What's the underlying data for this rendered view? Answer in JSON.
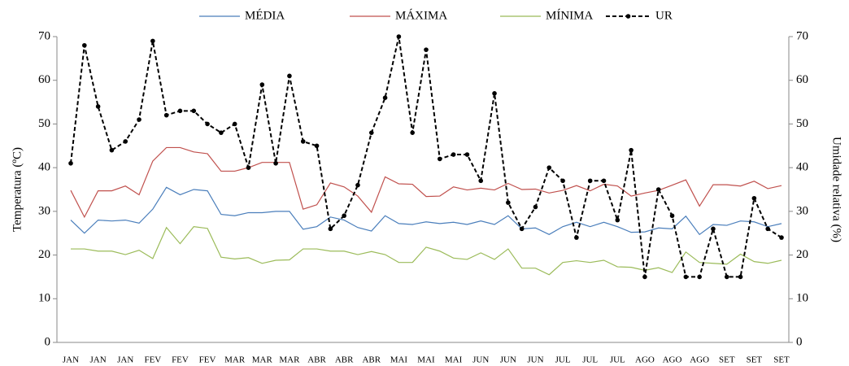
{
  "chart_data": {
    "type": "line",
    "ylabel": "Temperatura (ºC)",
    "y2label": "Umidade relativa (%)",
    "categories": [
      "JAN",
      null,
      "JAN",
      null,
      "JAN",
      null,
      "FEV",
      null,
      "FEV",
      null,
      "FEV",
      null,
      "MAR",
      null,
      "MAR",
      null,
      "MAR",
      null,
      "ABR",
      null,
      "ABR",
      null,
      "ABR",
      null,
      "MAI",
      null,
      "MAI",
      null,
      "MAI",
      null,
      "JUN",
      null,
      "JUN",
      null,
      "JUN",
      null,
      "JUL",
      null,
      "JUL",
      null,
      "JUL",
      null,
      "AGO",
      null,
      "AGO",
      null,
      "AGO",
      null,
      "SET",
      null,
      "SET",
      null,
      "SET"
    ],
    "series": [
      {
        "name": "MÉDIA",
        "color": "#4a7ebb",
        "values": [
          28,
          25,
          28,
          27.8,
          28,
          27.3,
          30.5,
          35.5,
          33.8,
          35,
          34.7,
          29.3,
          29,
          29.7,
          29.7,
          30,
          30,
          25.9,
          26.5,
          28.7,
          28,
          26.3,
          25.5,
          29,
          27.2,
          27,
          27.6,
          27.2,
          27.5,
          27,
          27.8,
          27,
          29,
          26,
          26.2,
          24.7,
          26.5,
          27.5,
          26.5,
          27.5,
          26.5,
          25.2,
          25.3,
          26.2,
          26,
          28.9,
          24.7,
          27,
          26.8,
          27.8,
          27.6,
          26.5,
          27.2
        ]
      },
      {
        "name": "MÁXIMA",
        "color": "#c0504d",
        "values": [
          34.8,
          28.7,
          34.7,
          34.7,
          35.8,
          33.8,
          41.5,
          44.6,
          44.6,
          43.6,
          43.2,
          39.2,
          39.2,
          40,
          41.2,
          41.2,
          41.2,
          30.5,
          31.5,
          36.5,
          35.6,
          33.5,
          29.8,
          37.9,
          36.3,
          36.2,
          33.4,
          33.5,
          35.6,
          34.9,
          35.3,
          34.9,
          36.4,
          35,
          35.1,
          34.2,
          34.8,
          35.9,
          34.7,
          36.2,
          35.8,
          33.5,
          34.2,
          34.8,
          36,
          37.2,
          31.2,
          36.1,
          36.1,
          35.8,
          36.9,
          35.2,
          35.9
        ]
      },
      {
        "name": "MÍNIMA",
        "color": "#9bbb59",
        "values": [
          21.4,
          21.4,
          20.9,
          20.9,
          20.1,
          21.1,
          19.2,
          26.3,
          22.6,
          26.5,
          26.1,
          19.5,
          19.1,
          19.4,
          18.1,
          18.8,
          18.9,
          21.4,
          21.4,
          20.9,
          20.9,
          20.1,
          20.8,
          20.1,
          18.3,
          18.3,
          21.8,
          20.9,
          19.3,
          19,
          20.5,
          19,
          21.4,
          17,
          17,
          15.5,
          18.3,
          18.7,
          18.3,
          18.8,
          17.3,
          17.2,
          16.5,
          17.1,
          16,
          20.7,
          18.3,
          18.1,
          17.9,
          20.2,
          18.5,
          18.1,
          18.8
        ]
      },
      {
        "name": "UR",
        "color": "#000000",
        "axis": "y2",
        "linestyle": "dashed",
        "marker": "circle",
        "values": [
          41,
          68,
          54,
          44,
          46,
          51,
          69,
          52,
          53,
          53,
          50,
          48,
          50,
          40,
          59,
          41,
          61,
          46,
          45,
          26,
          29,
          36,
          48,
          56,
          70,
          48,
          67,
          42,
          43,
          43,
          37,
          57,
          32,
          26,
          31,
          40,
          37,
          24,
          37,
          37,
          28,
          44,
          15,
          35,
          29,
          15,
          15,
          26,
          15,
          15,
          33,
          26,
          24
        ]
      }
    ],
    "ylim": [
      0,
      70
    ],
    "yticks": [
      0,
      10,
      20,
      30,
      40,
      50,
      60,
      70
    ],
    "y2lim": [
      0,
      70
    ],
    "y2ticks": [
      0,
      10,
      20,
      30,
      40,
      50,
      60,
      70
    ],
    "legend": "top"
  }
}
